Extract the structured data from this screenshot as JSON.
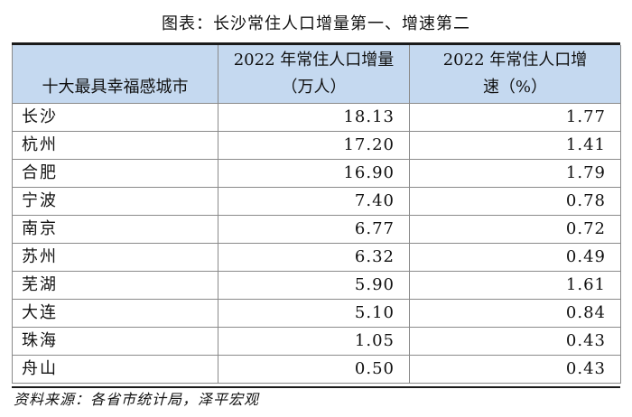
{
  "title": "图表：长沙常住人口增量第一、增速第二",
  "table": {
    "headers": {
      "city": "十大最具幸福感城市",
      "increase_line1": "2022 年常住人口增量",
      "increase_line2": "（万人）",
      "growth_line1": "2022 年常住人口增",
      "growth_line2": "速（%）"
    },
    "rows": [
      {
        "city": "长沙",
        "increase": "18.13",
        "growth": "1.77"
      },
      {
        "city": "杭州",
        "increase": "17.20",
        "growth": "1.41"
      },
      {
        "city": "合肥",
        "increase": "16.90",
        "growth": "1.79"
      },
      {
        "city": "宁波",
        "increase": "7.40",
        "growth": "0.78"
      },
      {
        "city": "南京",
        "increase": "6.77",
        "growth": "0.72"
      },
      {
        "city": "苏州",
        "increase": "6.32",
        "growth": "0.49"
      },
      {
        "city": "芜湖",
        "increase": "5.90",
        "growth": "1.61"
      },
      {
        "city": "大连",
        "increase": "5.10",
        "growth": "0.84"
      },
      {
        "city": "珠海",
        "increase": "1.05",
        "growth": "0.43"
      },
      {
        "city": "舟山",
        "increase": "0.50",
        "growth": "0.43"
      }
    ]
  },
  "source": "资料来源：各省市统计局，泽平宏观",
  "colors": {
    "header_bg": "#c5d9f0",
    "rule": "#1a1a1a",
    "grid": "#8a8a8a"
  }
}
